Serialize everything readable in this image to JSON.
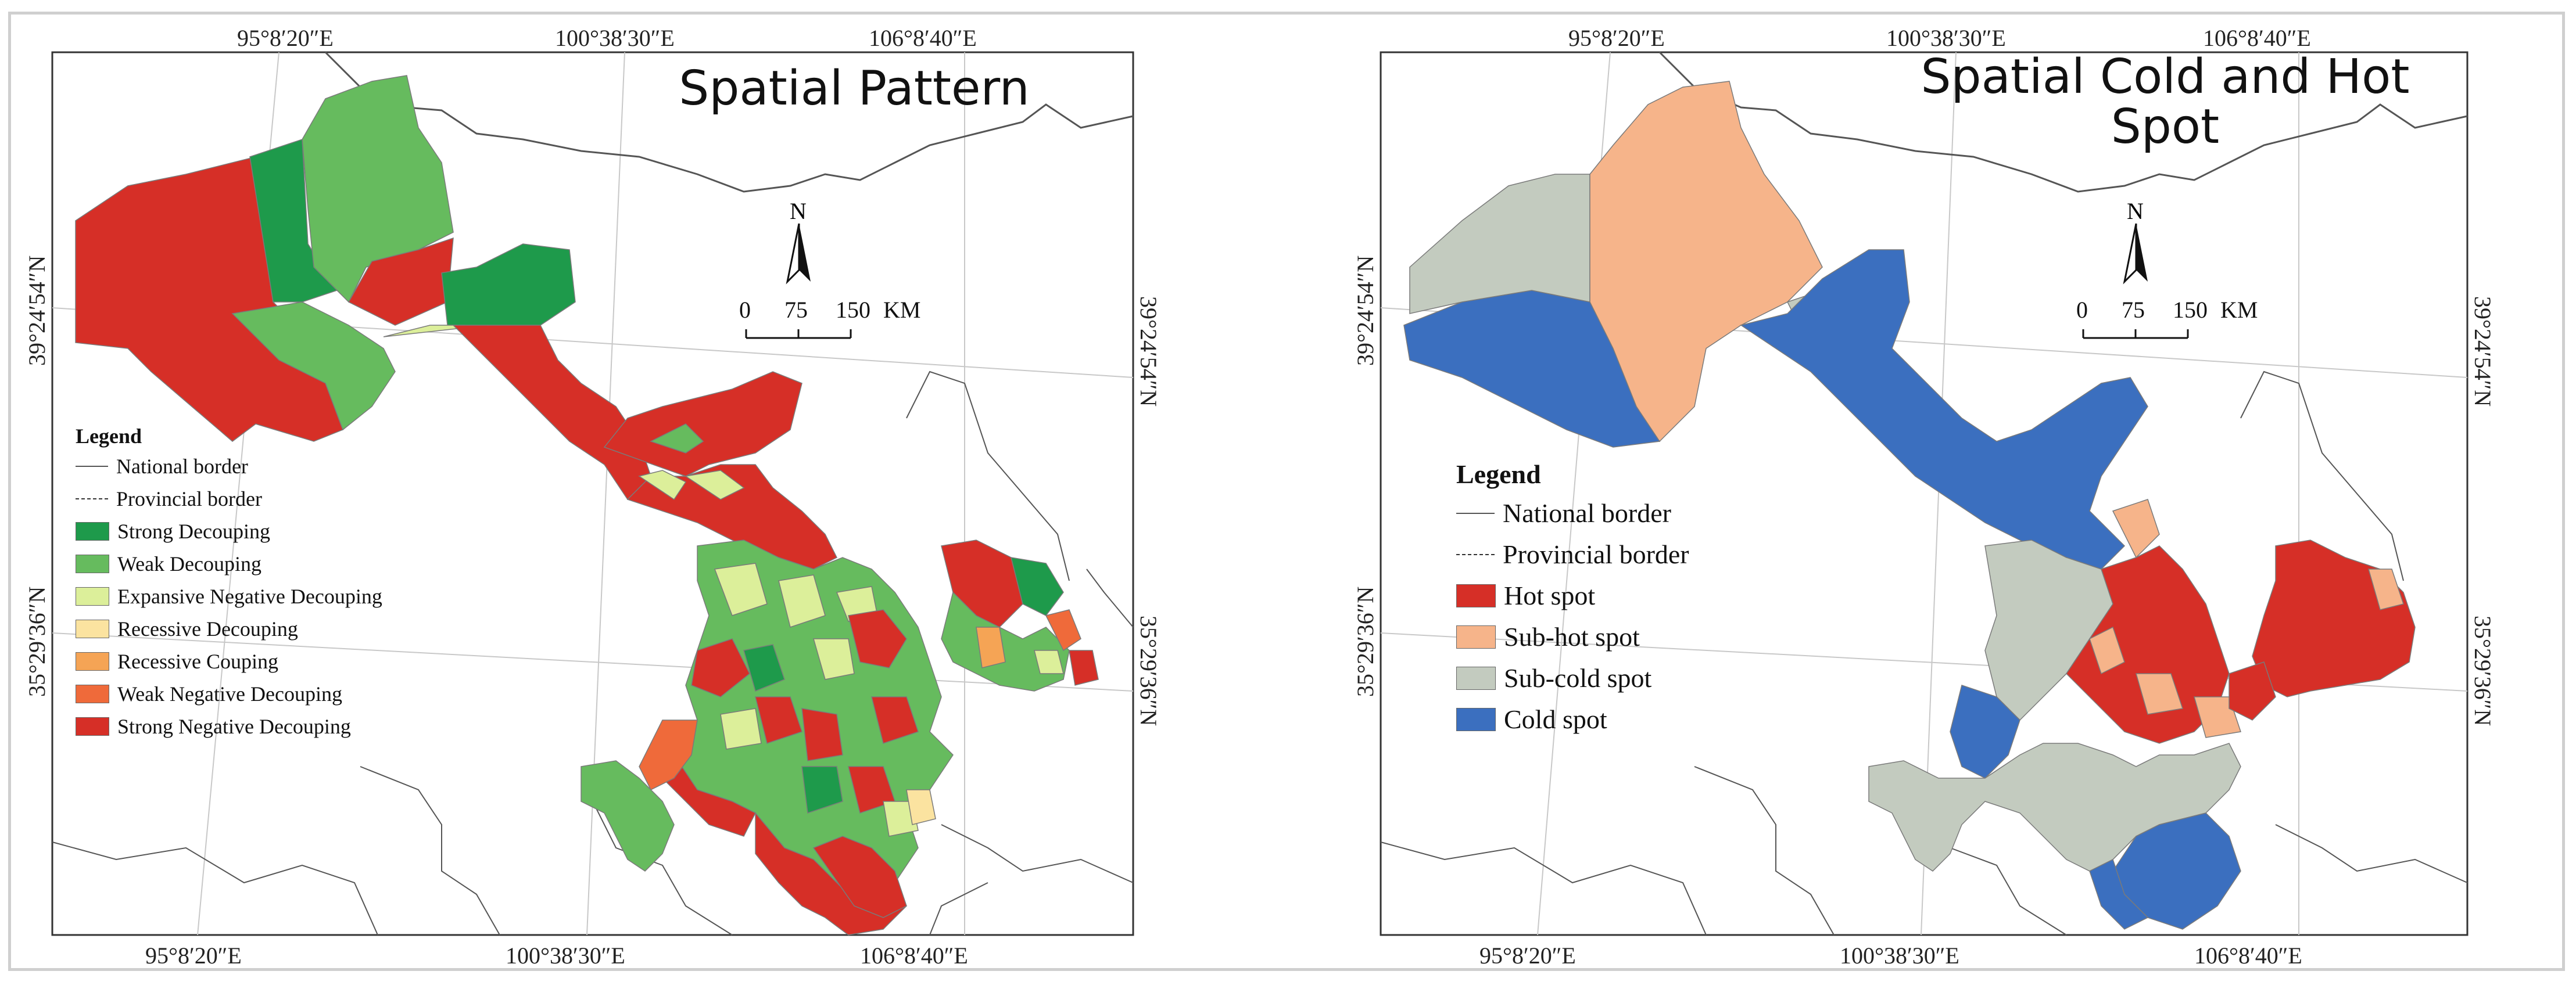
{
  "panels": [
    {
      "title": "Spatial Pattern",
      "top_labels": [
        "95°8′20″E",
        "100°38′30″E",
        "106°8′40″E"
      ],
      "bottom_labels": [
        "95°8′20″E",
        "100°38′30″E",
        "106°8′40″E"
      ],
      "left_labels": [
        "39°24′54″N",
        "35°29′36″N"
      ],
      "right_labels": [
        "39°24′54″N",
        "35°29′36″N"
      ],
      "north": "N",
      "scale": {
        "values": [
          "0",
          "75",
          "150"
        ],
        "unit": "KM"
      },
      "legend": {
        "title": "Legend",
        "items": [
          {
            "label": "National border",
            "kind": "line"
          },
          {
            "label": "Provincial border",
            "kind": "dashline"
          },
          {
            "label": "Strong Decouping",
            "kind": "fill",
            "color": "#1e9a4b"
          },
          {
            "label": "Weak Decouping",
            "kind": "fill",
            "color": "#66bb5e"
          },
          {
            "label": "Expansive Negative Decouping",
            "kind": "fill",
            "color": "#dcef9a"
          },
          {
            "label": "Recessive Decouping",
            "kind": "fill",
            "color": "#fbe3a0"
          },
          {
            "label": "Recessive Couping",
            "kind": "fill",
            "color": "#f5a455"
          },
          {
            "label": "Weak Negative Decouping",
            "kind": "fill",
            "color": "#ef6a3a"
          },
          {
            "label": "Strong Negative Decouping",
            "kind": "fill",
            "color": "#d62f27"
          }
        ]
      }
    },
    {
      "title": "Spatial Cold and Hot Spot",
      "top_labels": [
        "95°8′20″E",
        "100°38′30″E",
        "106°8′40″E"
      ],
      "bottom_labels": [
        "95°8′20″E",
        "100°38′30″E",
        "106°8′40″E"
      ],
      "left_labels": [
        "39°24′54″N",
        "35°29′36″N"
      ],
      "right_labels": [
        "39°24′54″N",
        "35°29′36″N"
      ],
      "north": "N",
      "scale": {
        "values": [
          "0",
          "75",
          "150"
        ],
        "unit": "KM"
      },
      "legend": {
        "title": "Legend",
        "items": [
          {
            "label": "National border",
            "kind": "line"
          },
          {
            "label": "Provincial border",
            "kind": "dashline"
          },
          {
            "label": "Hot spot",
            "kind": "fill",
            "color": "#d62f27"
          },
          {
            "label": "Sub-hot spot",
            "kind": "fill",
            "color": "#f6b48a"
          },
          {
            "label": "Sub-cold spot",
            "kind": "fill",
            "color": "#c3cbbf"
          },
          {
            "label": "Cold spot",
            "kind": "fill",
            "color": "#3b6fbf"
          }
        ]
      }
    }
  ]
}
